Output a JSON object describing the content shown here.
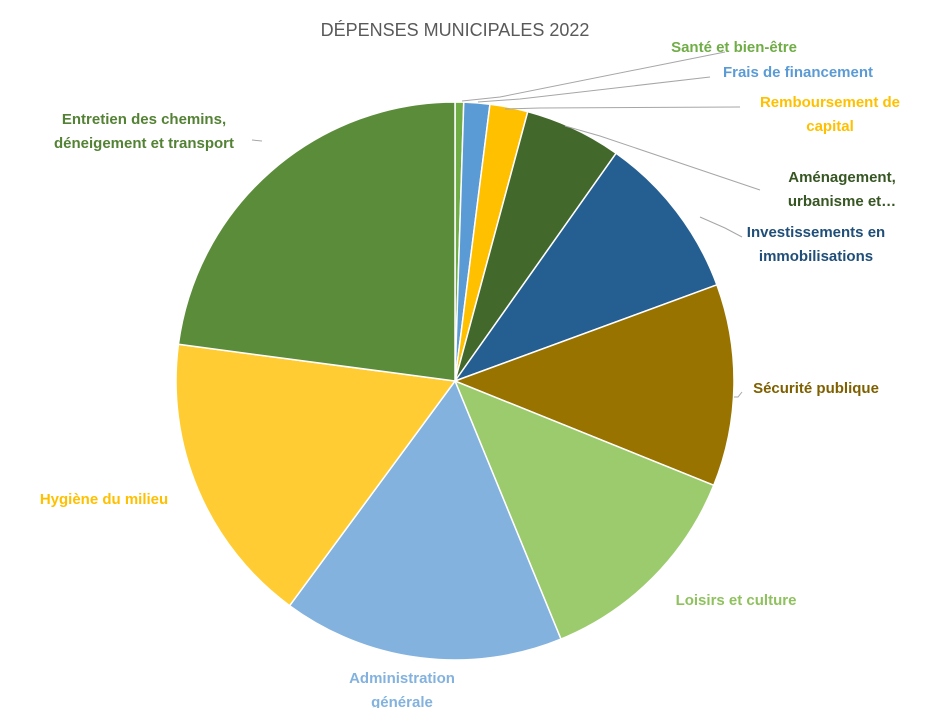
{
  "chart_data": {
    "type": "pie",
    "title": "DÉPENSES MUNICIPALES 2022",
    "legend": "none",
    "slices": [
      {
        "name": "Santé et bien-être",
        "value": 0.5,
        "color": "#70AD47",
        "label_lines": [
          "Santé et bien-être"
        ]
      },
      {
        "name": "Frais de financement",
        "value": 1.5,
        "color": "#5B9BD5",
        "label_lines": [
          "Frais de financement"
        ]
      },
      {
        "name": "Remboursement de capital",
        "value": 2.2,
        "color": "#FFC000",
        "label_lines": [
          "Remboursement de",
          "capital"
        ]
      },
      {
        "name": "Aménagement, urbanisme et…",
        "value": 5.6,
        "color": "#43682B",
        "label_lines": [
          "Aménagement,",
          "urbanisme et…"
        ]
      },
      {
        "name": "Investissements en immobilisations",
        "value": 9.6,
        "color": "#255E91",
        "label_lines": [
          "Investissements en",
          "immobilisations"
        ]
      },
      {
        "name": "Sécurité publique",
        "value": 11.7,
        "color": "#997300",
        "label_lines": [
          "Sécurité publique"
        ]
      },
      {
        "name": "Loisirs et culture",
        "value": 12.7,
        "color": "#9CCB6D",
        "label_lines": [
          "Loisirs et culture"
        ]
      },
      {
        "name": "Administration générale",
        "value": 16.3,
        "color": "#83B2DE",
        "label_lines": [
          "Administration",
          "générale"
        ]
      },
      {
        "name": "Hygiène du milieu",
        "value": 17.0,
        "color": "#FFCD33",
        "label_lines": [
          "Hygiène du milieu"
        ]
      },
      {
        "name": "Entretien des chemins, déneigement et transport",
        "value": 22.9,
        "color": "#5B8C3A",
        "label_lines": [
          "Entretien des chemins,",
          "déneigement et transport"
        ]
      }
    ]
  }
}
